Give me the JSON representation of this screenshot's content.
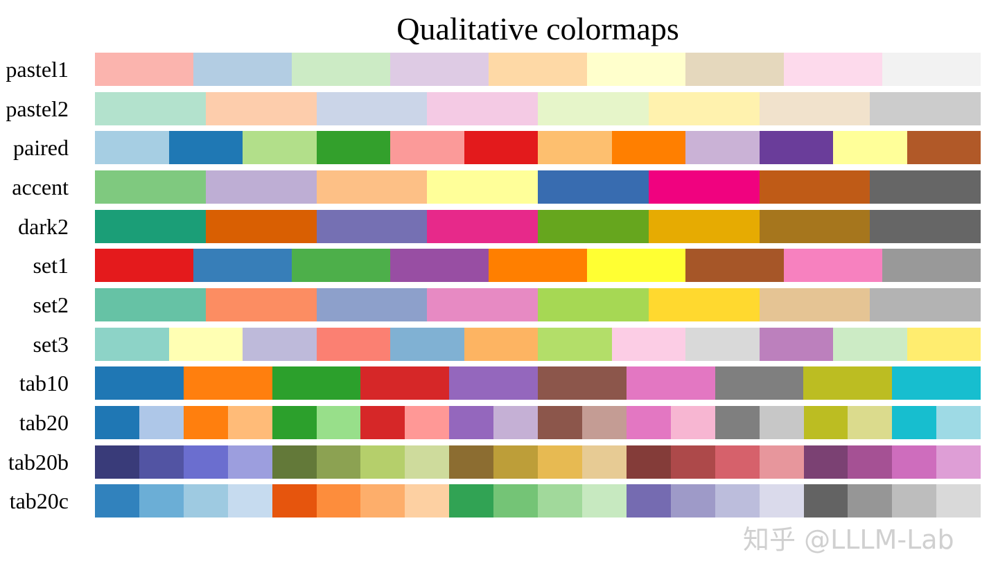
{
  "watermark": "知乎 @LLLM-Lab",
  "chart_data": {
    "type": "heatmap",
    "title": "Qualitative colormaps",
    "colormaps": [
      {
        "name": "pastel1",
        "colors": [
          "#fbb4ae",
          "#b3cde3",
          "#ccebc5",
          "#decbe4",
          "#fed9a6",
          "#ffffcc",
          "#e5d8bd",
          "#fddaec",
          "#f2f2f2"
        ]
      },
      {
        "name": "pastel2",
        "colors": [
          "#b3e2cd",
          "#fdcdac",
          "#cbd5e8",
          "#f4cae4",
          "#e6f5c9",
          "#fff2ae",
          "#f1e2cc",
          "#cccccc"
        ]
      },
      {
        "name": "paired",
        "colors": [
          "#a6cee3",
          "#1f78b4",
          "#b2df8a",
          "#33a02c",
          "#fb9a99",
          "#e31a1c",
          "#fdbf6f",
          "#ff7f00",
          "#cab2d6",
          "#6a3d9a",
          "#ffff99",
          "#b15928"
        ]
      },
      {
        "name": "accent",
        "colors": [
          "#7fc97f",
          "#beaed4",
          "#fdc086",
          "#ffff99",
          "#386cb0",
          "#f0027f",
          "#bf5b17",
          "#666666"
        ]
      },
      {
        "name": "dark2",
        "colors": [
          "#1b9e77",
          "#d95f02",
          "#7570b3",
          "#e7298a",
          "#66a61e",
          "#e6ab02",
          "#a6761d",
          "#666666"
        ]
      },
      {
        "name": "set1",
        "colors": [
          "#e41a1c",
          "#377eb8",
          "#4daf4a",
          "#984ea3",
          "#ff7f00",
          "#ffff33",
          "#a65628",
          "#f781bf",
          "#999999"
        ]
      },
      {
        "name": "set2",
        "colors": [
          "#66c2a5",
          "#fc8d62",
          "#8da0cb",
          "#e78ac3",
          "#a6d854",
          "#ffd92f",
          "#e5c494",
          "#b3b3b3"
        ]
      },
      {
        "name": "set3",
        "colors": [
          "#8dd3c7",
          "#ffffb3",
          "#bebada",
          "#fb8072",
          "#80b1d3",
          "#fdb462",
          "#b3de69",
          "#fccde5",
          "#d9d9d9",
          "#bc80bd",
          "#ccebc5",
          "#ffed6f"
        ]
      },
      {
        "name": "tab10",
        "colors": [
          "#1f77b4",
          "#ff7f0e",
          "#2ca02c",
          "#d62728",
          "#9467bd",
          "#8c564b",
          "#e377c2",
          "#7f7f7f",
          "#bcbd22",
          "#17becf"
        ]
      },
      {
        "name": "tab20",
        "colors": [
          "#1f77b4",
          "#aec7e8",
          "#ff7f0e",
          "#ffbb78",
          "#2ca02c",
          "#98df8a",
          "#d62728",
          "#ff9896",
          "#9467bd",
          "#c5b0d5",
          "#8c564b",
          "#c49c94",
          "#e377c2",
          "#f7b6d2",
          "#7f7f7f",
          "#c7c7c7",
          "#bcbd22",
          "#dbdb8d",
          "#17becf",
          "#9edae5"
        ]
      },
      {
        "name": "tab20b",
        "colors": [
          "#393b79",
          "#5254a3",
          "#6b6ecf",
          "#9c9ede",
          "#637939",
          "#8ca252",
          "#b5cf6b",
          "#cedb9c",
          "#8c6d31",
          "#bd9e39",
          "#e7ba52",
          "#e7cb94",
          "#843c39",
          "#ad494a",
          "#d6616b",
          "#e7969c",
          "#7b4173",
          "#a55194",
          "#ce6dbd",
          "#de9ed6"
        ]
      },
      {
        "name": "tab20c",
        "colors": [
          "#3182bd",
          "#6baed6",
          "#9ecae1",
          "#c6dbef",
          "#e6550d",
          "#fd8d3c",
          "#fdae6b",
          "#fdd0a2",
          "#31a354",
          "#74c476",
          "#a1d99b",
          "#c7e9c0",
          "#756bb1",
          "#9e9ac8",
          "#bcbddc",
          "#dadaeb",
          "#636363",
          "#969696",
          "#bdbdbd",
          "#d9d9d9"
        ]
      }
    ]
  }
}
